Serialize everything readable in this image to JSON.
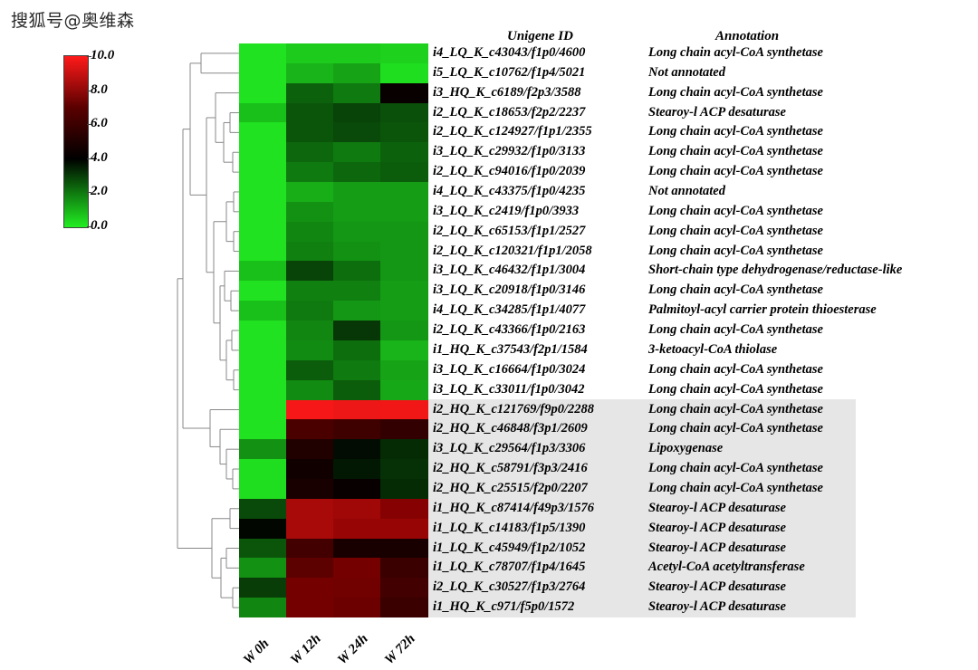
{
  "watermark": "搜狐号@奥维森",
  "chart_data": {
    "type": "heatmap",
    "columns": [
      "W 0h",
      "W 12h",
      "W 24h",
      "W 72h"
    ],
    "headers": {
      "unigene": "Unigene ID",
      "annotation": "Annotation"
    },
    "legend": {
      "min": 0.0,
      "max": 10.0,
      "ticks": [
        "10.0",
        "8.0",
        "6.0",
        "4.0",
        "2.0",
        "0.0"
      ],
      "colors": {
        "high": "#ff1a1a",
        "mid": "#000000",
        "low": "#22ee22"
      }
    },
    "rows": [
      {
        "id": "i4_LQ_K_c43043/f1p0/4600",
        "annotation": "Long chain acyl-CoA synthetase",
        "values": [
          0.2,
          0.6,
          0.6,
          0.5
        ]
      },
      {
        "id": "i5_LQ_K_c10762/f1p4/5021",
        "annotation": "Not annotated",
        "values": [
          0.2,
          1.0,
          1.3,
          0.3
        ]
      },
      {
        "id": "i3_HQ_K_c6189/f2p3/3588",
        "annotation": "Long chain acyl-CoA synthetase",
        "values": [
          0.2,
          2.4,
          2.0,
          4.2
        ]
      },
      {
        "id": "i2_LQ_K_c18653/f2p2/2237",
        "annotation": "Stearoy-l ACP desaturase",
        "values": [
          0.8,
          2.6,
          2.9,
          2.7
        ]
      },
      {
        "id": "i2_LQ_K_c124927/f1p1/2355",
        "annotation": "Long chain acyl-CoA synthetase",
        "values": [
          0.2,
          2.6,
          2.8,
          2.6
        ]
      },
      {
        "id": "i3_LQ_K_c29932/f1p0/3133",
        "annotation": "Long chain acyl-CoA synthetase",
        "values": [
          0.2,
          2.3,
          2.0,
          2.4
        ]
      },
      {
        "id": "i2_LQ_K_c94016/f1p0/2039",
        "annotation": "Long chain acyl-CoA synthetase",
        "values": [
          0.2,
          2.0,
          2.3,
          2.5
        ]
      },
      {
        "id": "i4_LQ_K_c43375/f1p0/4235",
        "annotation": "Not annotated",
        "values": [
          0.2,
          1.1,
          1.4,
          1.4
        ]
      },
      {
        "id": "i3_LQ_K_c2419/f1p0/3933",
        "annotation": "Long chain acyl-CoA synthetase",
        "values": [
          0.2,
          1.6,
          1.4,
          1.4
        ]
      },
      {
        "id": "i2_LQ_K_c65153/f1p1/2527",
        "annotation": "Long chain acyl-CoA synthetase",
        "values": [
          0.2,
          1.8,
          1.5,
          1.5
        ]
      },
      {
        "id": "i2_LQ_K_c120321/f1p1/2058",
        "annotation": "Long chain acyl-CoA synthetase",
        "values": [
          0.2,
          1.9,
          1.6,
          1.5
        ]
      },
      {
        "id": "i3_LQ_K_c46432/f1p1/3004",
        "annotation": "Short-chain type dehydrogenase/reductase-like",
        "values": [
          0.8,
          2.9,
          2.2,
          1.5
        ]
      },
      {
        "id": "i3_LQ_K_c20918/f1p0/3146",
        "annotation": "Long chain acyl-CoA synthetase",
        "values": [
          0.2,
          1.9,
          1.9,
          1.4
        ]
      },
      {
        "id": "i4_LQ_K_c34285/f1p1/4077",
        "annotation": "Palmitoyl-acyl carrier protein thioesterase",
        "values": [
          0.8,
          2.0,
          1.5,
          1.4
        ]
      },
      {
        "id": "i2_LQ_K_c43366/f1p0/2163",
        "annotation": "Long chain acyl-CoA synthetase",
        "values": [
          0.2,
          1.8,
          3.1,
          1.5
        ]
      },
      {
        "id": "i1_HQ_K_c37543/f2p1/1584",
        "annotation": "3-ketoacyl-CoA thiolase",
        "values": [
          0.2,
          1.7,
          2.2,
          1.0
        ]
      },
      {
        "id": "i3_LQ_K_c16664/f1p0/3024",
        "annotation": "Long chain acyl-CoA synthetase",
        "values": [
          0.2,
          2.5,
          2.0,
          1.3
        ]
      },
      {
        "id": "i3_LQ_K_c33011/f1p0/3042",
        "annotation": "Long chain acyl-CoA synthetase",
        "values": [
          0.2,
          1.7,
          2.5,
          1.2
        ]
      },
      {
        "id": "i2_HQ_K_c121769/f9p0/2288",
        "annotation": "Long chain acyl-CoA synthetase",
        "values": [
          0.2,
          9.8,
          9.6,
          9.7
        ]
      },
      {
        "id": "i2_HQ_K_c46848/f3p1/2609",
        "annotation": "Long chain acyl-CoA synthetase",
        "values": [
          0.2,
          5.8,
          5.5,
          5.2
        ]
      },
      {
        "id": "i3_LQ_K_c29564/f1p3/3306",
        "annotation": "Lipoxygenase",
        "values": [
          1.6,
          4.8,
          3.8,
          3.3
        ]
      },
      {
        "id": "i2_HQ_K_c58791/f3p3/2416",
        "annotation": "Long chain acyl-CoA synthetase",
        "values": [
          0.3,
          4.4,
          3.6,
          3.2
        ]
      },
      {
        "id": "i2_HQ_K_c25515/f2p0/2207",
        "annotation": "Long chain acyl-CoA synthetase",
        "values": [
          0.3,
          4.6,
          4.2,
          3.3
        ]
      },
      {
        "id": "i1_HQ_K_c87414/f49p3/1576",
        "annotation": "Stearoy-l ACP desaturase",
        "values": [
          2.8,
          8.0,
          7.8,
          7.2
        ]
      },
      {
        "id": "i1_LQ_K_c14183/f1p5/1390",
        "annotation": "Stearoy-l ACP desaturase",
        "values": [
          3.9,
          8.0,
          7.6,
          7.6
        ]
      },
      {
        "id": "i1_LQ_K_c45949/f1p2/1052",
        "annotation": "Stearoy-l ACP desaturase",
        "values": [
          2.6,
          5.6,
          4.6,
          4.6
        ]
      },
      {
        "id": "i1_LQ_K_c78707/f1p4/1645",
        "annotation": "Acetyl-CoA acetyltransferase",
        "values": [
          1.6,
          6.2,
          6.8,
          5.4
        ]
      },
      {
        "id": "i2_LQ_K_c30527/f1p3/2764",
        "annotation": "Stearoy-l ACP desaturase",
        "values": [
          3.0,
          6.8,
          6.7,
          5.6
        ]
      },
      {
        "id": "i1_HQ_K_c971/f5p0/1572",
        "annotation": "Stearoy-l ACP desaturase",
        "values": [
          1.8,
          6.8,
          6.6,
          5.4
        ]
      }
    ]
  }
}
